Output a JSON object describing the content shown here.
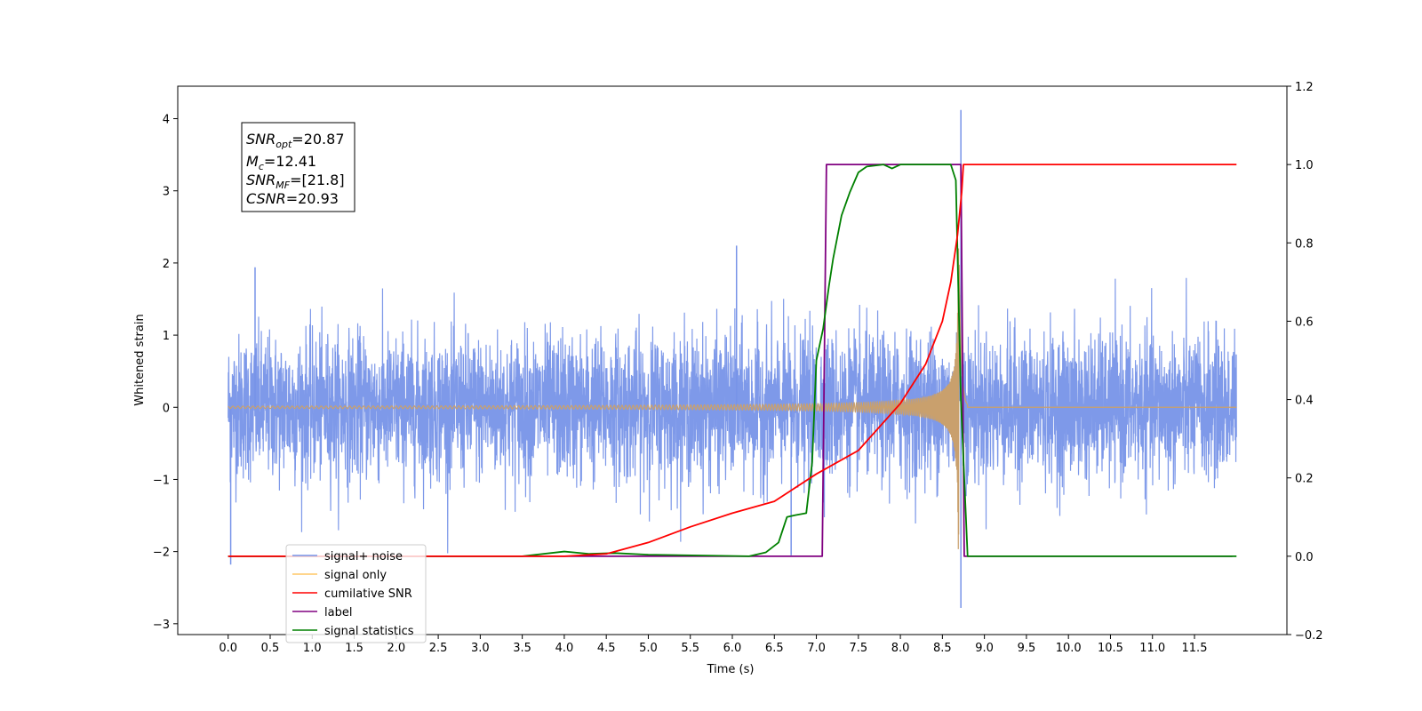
{
  "chart_data": {
    "type": "line",
    "xlabel": "Time (s)",
    "ylabel": "Whitened strain",
    "xlim": [
      -0.6,
      12.6
    ],
    "ylim": [
      -3.15,
      4.45
    ],
    "y2lim": [
      -0.2,
      1.2
    ],
    "grid": false,
    "legend_position": "lower-left",
    "x_ticks": [
      "0.0",
      "0.5",
      "1.0",
      "1.5",
      "2.0",
      "2.5",
      "3.0",
      "3.5",
      "4.0",
      "4.5",
      "5.0",
      "5.5",
      "6.0",
      "6.5",
      "7.0",
      "7.5",
      "8.0",
      "8.5",
      "9.0",
      "9.5",
      "10.0",
      "10.5",
      "11.0",
      "11.5"
    ],
    "y_ticks": [
      "−3",
      "−2",
      "−1",
      "0",
      "1",
      "2",
      "3",
      "4"
    ],
    "y2_ticks": [
      "−0.2",
      "0.0",
      "0.2",
      "0.4",
      "0.6",
      "0.8",
      "1.0",
      "1.2"
    ],
    "annotation": {
      "line1": {
        "main": "SNR",
        "sub": "opt",
        "rest": "=20.87"
      },
      "line2": {
        "main": "M",
        "sub": "c",
        "rest": "=12.41"
      },
      "line3": {
        "main": "SNR",
        "sub": "MF",
        "rest": "=[21.8]"
      },
      "line4": {
        "main": "CSNR",
        "sub": "",
        "rest": "=20.93"
      }
    },
    "legend": [
      {
        "label": "signal+ noise",
        "color": "#7793e8"
      },
      {
        "label": "signal only",
        "color": "#ffc766"
      },
      {
        "label": "cumilative SNR",
        "color": "#ff0000"
      },
      {
        "label": "label",
        "color": "#800080"
      },
      {
        "label": "signal statistics",
        "color": "#008000"
      }
    ],
    "series": [
      {
        "name": "signal+ noise",
        "axis": "left",
        "color": "#7793e8",
        "description_values": {
          "x_range": [
            0.0,
            12.0
          ],
          "typical_amplitude": 1.3,
          "peak_spikes": [
            [
              0.03,
              -2.18
            ],
            [
              0.32,
              1.94
            ],
            [
              6.05,
              2.24
            ],
            [
              8.72,
              4.12
            ],
            [
              8.72,
              -2.78
            ],
            [
              6.7,
              -2.05
            ]
          ]
        }
      },
      {
        "name": "signal only",
        "axis": "left",
        "color": "#c9a06d",
        "chirp": {
          "x_range": [
            0.0,
            12.0
          ],
          "merger_time": 8.7,
          "peak_amplitude": 2.4
        }
      },
      {
        "name": "cumilative SNR",
        "axis": "right",
        "color": "#ff0000",
        "x": [
          0.0,
          4.0,
          4.5,
          5.0,
          5.5,
          6.0,
          6.5,
          7.0,
          7.5,
          8.0,
          8.3,
          8.5,
          8.6,
          8.68,
          8.73,
          8.75,
          12.0
        ],
        "values": [
          0.0,
          0.0,
          0.006,
          0.035,
          0.075,
          0.11,
          0.14,
          0.21,
          0.27,
          0.39,
          0.49,
          0.6,
          0.7,
          0.82,
          0.93,
          1.0,
          1.0
        ]
      },
      {
        "name": "label",
        "axis": "right",
        "color": "#800080",
        "x": [
          0.0,
          7.07,
          7.12,
          8.72,
          8.76,
          11.95
        ],
        "values": [
          0.0,
          0.0,
          1.0,
          1.0,
          0.0,
          0.0
        ]
      },
      {
        "name": "signal statistics",
        "axis": "right",
        "color": "#008000",
        "x": [
          0.0,
          3.5,
          4.0,
          4.3,
          4.6,
          5.0,
          6.2,
          6.4,
          6.55,
          6.65,
          6.75,
          6.88,
          6.95,
          7.0,
          7.08,
          7.15,
          7.2,
          7.3,
          7.4,
          7.5,
          7.6,
          7.8,
          7.9,
          8.0,
          8.3,
          8.6,
          8.66,
          8.72,
          8.8,
          12.0
        ],
        "values": [
          0.0,
          0.0,
          0.012,
          0.006,
          0.008,
          0.004,
          0.0,
          0.01,
          0.035,
          0.1,
          0.105,
          0.11,
          0.24,
          0.5,
          0.58,
          0.69,
          0.76,
          0.87,
          0.93,
          0.98,
          0.995,
          1.0,
          0.99,
          1.0,
          1.0,
          1.0,
          0.96,
          0.4,
          0.0,
          0.0
        ]
      }
    ]
  }
}
